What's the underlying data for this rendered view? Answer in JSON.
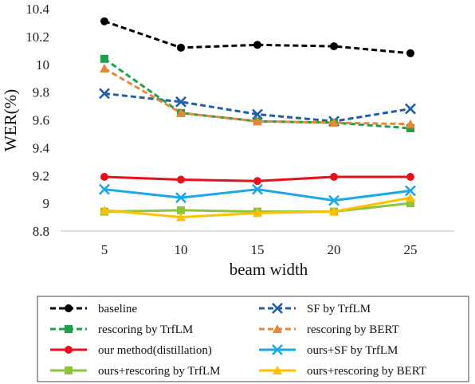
{
  "chart_data": {
    "type": "line",
    "xlabel": "beam width",
    "ylabel": "WER(%)",
    "x": [
      5,
      10,
      15,
      20,
      25
    ],
    "ylim": [
      8.8,
      10.4
    ],
    "yticks": [
      "8.8",
      "9",
      "9.2",
      "9.4",
      "9.6",
      "9.8",
      "10",
      "10.2",
      "10.4"
    ],
    "grid": false,
    "legend_position": "bottom",
    "series": [
      {
        "name": "baseline",
        "values": [
          10.31,
          10.12,
          10.14,
          10.13,
          10.08
        ],
        "color": "#000000",
        "dash": true,
        "marker": "circle"
      },
      {
        "name": "SF by TrfLM",
        "values": [
          9.79,
          9.73,
          9.64,
          9.59,
          9.68
        ],
        "color": "#1f5fa8",
        "dash": true,
        "marker": "x"
      },
      {
        "name": "rescoring by TrfLM",
        "values": [
          10.04,
          9.65,
          9.59,
          9.58,
          9.54
        ],
        "color": "#1aa34a",
        "dash": true,
        "marker": "square"
      },
      {
        "name": "rescoring by BERT",
        "values": [
          9.97,
          9.65,
          9.59,
          9.58,
          9.57
        ],
        "color": "#e8873a",
        "dash": true,
        "marker": "triangle"
      },
      {
        "name": "our method(distillation)",
        "values": [
          9.19,
          9.17,
          9.16,
          9.19,
          9.19
        ],
        "color": "#e8101a",
        "dash": false,
        "marker": "circle"
      },
      {
        "name": "ours+SF by TrfLM",
        "values": [
          9.1,
          9.04,
          9.1,
          9.02,
          9.09
        ],
        "color": "#1aa8e8",
        "dash": false,
        "marker": "x"
      },
      {
        "name": "ours+rescoring by TrfLM",
        "values": [
          8.94,
          8.95,
          8.94,
          8.94,
          9.0
        ],
        "color": "#8cc43c",
        "dash": false,
        "marker": "square"
      },
      {
        "name": "ours+rescoring by BERT",
        "values": [
          8.95,
          8.9,
          8.93,
          8.94,
          9.04
        ],
        "color": "#ffc000",
        "dash": false,
        "marker": "triangle"
      }
    ]
  }
}
